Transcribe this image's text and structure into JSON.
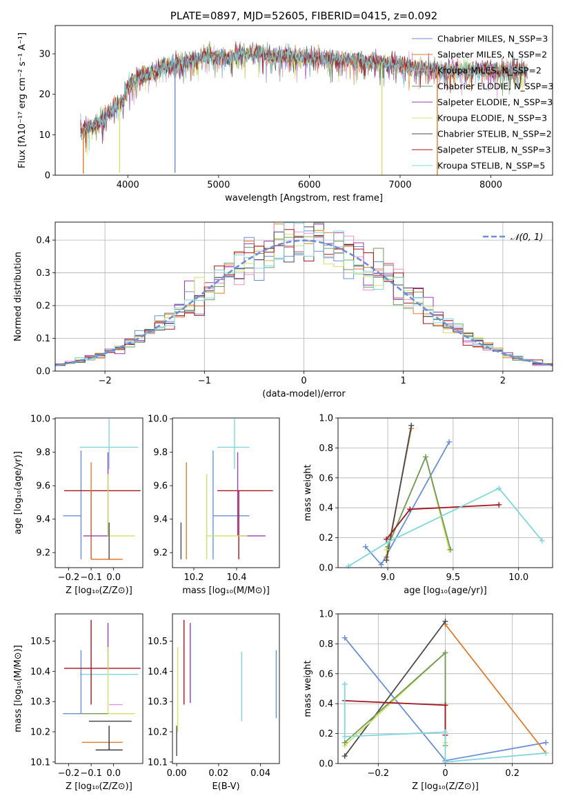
{
  "chart_data": [
    {
      "id": "spectrum",
      "type": "line",
      "title": "PLATE=0897, MJD=52605, FIBERID=0415, z=0.092",
      "xlabel": "wavelength [Angstrom, rest frame]",
      "ylabel": "Flux [fλ10⁻¹⁷ erg cm⁻² s⁻¹ A⁻¹]",
      "xlim": [
        3200,
        8680
      ],
      "ylim": [
        0,
        37
      ],
      "xticks": [
        4000,
        5000,
        6000,
        7000,
        8000
      ],
      "yticks": [
        0,
        10,
        20,
        30
      ],
      "legend_position": "top-right",
      "series": [
        {
          "name": "Chabrier MILES, N_SSP=3",
          "color": "#6a8fd8"
        },
        {
          "name": "Salpeter MILES, N_SSP=2",
          "color": "#e27a2c"
        },
        {
          "name": "Kroupa MILES, N_SSP=2",
          "color": "#e88fd0"
        },
        {
          "name": "Chabrier ELODIE, N_SSP=3",
          "color": "#6f9a5b"
        },
        {
          "name": "Salpeter ELODIE, N_SSP=3",
          "color": "#9a3cb0"
        },
        {
          "name": "Kroupa ELODIE, N_SSP=3",
          "color": "#d3e163"
        },
        {
          "name": "Chabrier STELIB, N_SSP=2",
          "color": "#4a4a4a"
        },
        {
          "name": "Salpeter STELIB, N_SSP=3",
          "color": "#a5141a"
        },
        {
          "name": "Kroupa STELIB, N_SSP=5",
          "color": "#7fd7dd"
        }
      ],
      "continuum": {
        "x": [
          3480,
          3560,
          3640,
          3700,
          3800,
          3880,
          3950,
          4000,
          4100,
          4200,
          4300,
          4400,
          4500,
          4600,
          4700,
          4800,
          4900,
          5000,
          5100,
          5200,
          5300,
          5400,
          5500,
          5600,
          5700,
          5800,
          5900,
          6000,
          6100,
          6200,
          6300,
          6400,
          6500,
          6600,
          6700,
          6800,
          6900,
          7000,
          7100,
          7200,
          7300,
          7400,
          7500,
          7600,
          7700,
          7800,
          7900,
          8000,
          8100,
          8200,
          8300,
          8400
        ],
        "y": [
          11,
          12,
          12.5,
          13.5,
          15.5,
          17,
          18.5,
          22,
          24,
          25,
          25.5,
          27,
          27.5,
          28,
          28,
          29,
          29.5,
          29.5,
          29,
          30,
          30,
          30,
          30,
          29.5,
          29.5,
          29.5,
          29,
          29,
          29,
          28.5,
          28.5,
          28.5,
          28.5,
          28,
          28,
          28,
          27.5,
          27.5,
          27,
          26.5,
          26.5,
          26,
          26,
          26,
          26,
          26,
          26,
          26,
          26,
          26,
          26,
          26
        ]
      },
      "absorption_features": [
        {
          "x": 3510,
          "depth": 11,
          "series": "Salpeter MILES, N_SSP=2"
        },
        {
          "x": 3910,
          "depth": 17,
          "series": "Kroupa ELODIE, N_SSP=3"
        },
        {
          "x": 4520,
          "depth": 27,
          "series": "Chabrier MILES, N_SSP=3"
        },
        {
          "x": 6800,
          "depth": 28,
          "series": "Kroupa ELODIE, N_SSP=3"
        },
        {
          "x": 7410,
          "depth": 26,
          "series": "Salpeter MILES, N_SSP=2"
        }
      ]
    },
    {
      "id": "residuals",
      "type": "histogram",
      "xlabel": "(data-model)/error",
      "ylabel": "Normed distribution",
      "xlim": [
        -2.5,
        2.5
      ],
      "ylim": [
        0,
        0.455
      ],
      "xticks": [
        -2,
        -1,
        0,
        1,
        2
      ],
      "yticks": [
        0.0,
        0.1,
        0.2,
        0.3,
        0.4
      ],
      "grid": true,
      "legend": "𝒩(0, 1)",
      "legend_position": "top-right",
      "gaussian": {
        "mean": 0,
        "sigma": 1,
        "color": "#6a8fd8"
      }
    },
    {
      "id": "age-vs-Z",
      "type": "errorbar",
      "xlabel": "Z [log₁₀(Z/Z⊙)]",
      "ylabel": "age  [log₁₀(age/yr)]",
      "xlim": [
        -0.26,
        0.13
      ],
      "ylim": [
        9.11,
        10.005
      ],
      "xticks": [
        -0.2,
        -0.1,
        0.0
      ],
      "yticks": [
        9.2,
        9.4,
        9.6,
        9.8,
        10.0
      ],
      "points": [
        {
          "color": "#7fd7dd",
          "x": -0.02,
          "xerr": [
            0.13,
            0.13
          ],
          "y": 9.83,
          "yerr": [
            0.13,
            0.17
          ]
        },
        {
          "color": "#6a8fd8",
          "x": -0.145,
          "xerr": [
            0.08,
            0.0
          ],
          "y": 9.42,
          "yerr": [
            0.26,
            0.39
          ]
        },
        {
          "color": "#a5141a",
          "x": -0.1,
          "xerr": [
            0.12,
            0.22
          ],
          "y": 9.57,
          "yerr": [
            0.41,
            0.0
          ]
        },
        {
          "color": "#e27a2c",
          "x": -0.1,
          "xerr": [
            0.0,
            0.14
          ],
          "y": 9.16,
          "yerr": [
            0.0,
            0.58
          ]
        },
        {
          "color": "#9a3cb0",
          "x": -0.025,
          "xerr": [
            0.11,
            0.0
          ],
          "y": 9.3,
          "yerr": [
            0.0,
            0.5
          ]
        },
        {
          "color": "#d3e163",
          "x": -0.025,
          "xerr": [
            0.0,
            0.12
          ],
          "y": 9.3,
          "yerr": [
            0.0,
            0.37
          ]
        },
        {
          "color": "#4a4a4a",
          "x": -0.02,
          "xerr": [
            0.0,
            0.0
          ],
          "y": 9.16,
          "yerr": [
            0.0,
            0.22
          ]
        }
      ]
    },
    {
      "id": "age-vs-mass",
      "type": "errorbar",
      "xlabel": "mass [log₁₀(M/M⊙)]",
      "ylabel": "",
      "xlim": [
        10.1,
        10.6
      ],
      "ylim": [
        9.11,
        10.005
      ],
      "xticks": [
        10.2,
        10.4
      ],
      "yticks": [
        9.2,
        9.4,
        9.6,
        9.8,
        10.0
      ],
      "points": [
        {
          "color": "#7fd7dd",
          "x": 10.39,
          "xerr": [
            0.08,
            0.07
          ],
          "y": 9.83,
          "yerr": [
            0.13,
            0.17
          ]
        },
        {
          "color": "#6a8fd8",
          "x": 10.29,
          "xerr": [
            0.0,
            0.17
          ],
          "y": 9.42,
          "yerr": [
            0.26,
            0.39
          ]
        },
        {
          "color": "#a5141a",
          "x": 10.41,
          "xerr": [
            0.1,
            0.16
          ],
          "y": 9.57,
          "yerr": [
            0.41,
            0.0
          ]
        },
        {
          "color": "#e27a2c",
          "x": 10.165,
          "xerr": [
            0.0,
            0.0
          ],
          "y": 9.3,
          "yerr": [
            0.14,
            0.44
          ]
        },
        {
          "color": "#9a3cb0",
          "x": 10.405,
          "xerr": [
            0.0,
            0.13
          ],
          "y": 9.3,
          "yerr": [
            0.0,
            0.5
          ]
        },
        {
          "color": "#d3e163",
          "x": 10.26,
          "xerr": [
            0.0,
            0.19
          ],
          "y": 9.3,
          "yerr": [
            0.14,
            0.37
          ]
        },
        {
          "color": "#4a4a4a",
          "x": 10.14,
          "xerr": [
            0.0,
            0.0
          ],
          "y": 9.16,
          "yerr": [
            0.0,
            0.22
          ]
        }
      ]
    },
    {
      "id": "weight-vs-age",
      "type": "line",
      "xlabel": "age  [log₁₀(age/yr)]",
      "ylabel": "mass weight",
      "xlim": [
        8.62,
        10.26
      ],
      "ylim": [
        0,
        1.0
      ],
      "xticks": [
        9.0,
        9.5,
        10.0
      ],
      "yticks": [
        0.0,
        0.2,
        0.4,
        0.6,
        0.8,
        1.0
      ],
      "grid": true,
      "series": [
        {
          "color": "#6a8fd8",
          "x": [
            8.83,
            8.95,
            9.47
          ],
          "y": [
            0.14,
            0.02,
            0.84
          ]
        },
        {
          "color": "#e27a2c",
          "x": [
            8.99,
            9.18
          ],
          "y": [
            0.07,
            0.93
          ]
        },
        {
          "color": "#4a4a4a",
          "x": [
            8.99,
            9.18
          ],
          "y": [
            0.05,
            0.95
          ]
        },
        {
          "color": "#d3e163",
          "x": [
            8.99,
            9.29,
            9.47
          ],
          "y": [
            0.12,
            0.74,
            0.12
          ]
        },
        {
          "color": "#6f9a5b",
          "x": [
            9.0,
            9.29,
            9.48
          ],
          "y": [
            0.14,
            0.74,
            0.12
          ]
        },
        {
          "color": "#a5141a",
          "x": [
            8.99,
            9.17,
            9.85
          ],
          "y": [
            0.19,
            0.39,
            0.42
          ]
        },
        {
          "color": "#7fd7dd",
          "x": [
            8.7,
            9.0,
            9.85,
            10.18
          ],
          "y": [
            0.01,
            0.17,
            0.53,
            0.18
          ]
        }
      ]
    },
    {
      "id": "mass-vs-Z",
      "type": "errorbar",
      "xlabel": "Z [log₁₀(Z/Z⊙)]",
      "ylabel": "mass [log₁₀(M/M⊙)]",
      "xlim": [
        -0.26,
        0.13
      ],
      "ylim": [
        10.095,
        10.59
      ],
      "xticks": [
        -0.2,
        -0.1,
        0.0
      ],
      "yticks": [
        10.1,
        10.2,
        10.3,
        10.4,
        10.5
      ],
      "points": [
        {
          "color": "#7fd7dd",
          "x": -0.02,
          "xerr": [
            0.13,
            0.13
          ],
          "y": 10.39,
          "yerr": [
            0.0,
            0.0
          ]
        },
        {
          "color": "#6a8fd8",
          "x": -0.145,
          "xerr": [
            0.08,
            0.0
          ],
          "y": 10.26,
          "yerr": [
            0.0,
            0.21
          ]
        },
        {
          "color": "#a5141a",
          "x": -0.1,
          "xerr": [
            0.12,
            0.22
          ],
          "y": 10.41,
          "yerr": [
            0.12,
            0.16
          ]
        },
        {
          "color": "#e27a2c",
          "x": -0.1,
          "xerr": [
            0.04,
            0.14
          ],
          "y": 10.165,
          "yerr": [
            0.0,
            0.0
          ]
        },
        {
          "color": "#e88fd0",
          "x": -0.02,
          "xerr": [
            0.0,
            0.06
          ],
          "y": 10.29,
          "yerr": [
            0.0,
            0.0
          ]
        },
        {
          "color": "#9a3cb0",
          "x": -0.025,
          "xerr": [
            0.0,
            0.0
          ],
          "y": 10.405,
          "yerr": [
            0.0,
            0.155
          ]
        },
        {
          "color": "#d3e163",
          "x": -0.025,
          "xerr": [
            0.0,
            0.12
          ],
          "y": 10.26,
          "yerr": [
            0.0,
            0.22
          ]
        },
        {
          "color": "#6f9a5b",
          "x": -0.145,
          "xerr": [
            0.0,
            0.12
          ],
          "y": 10.26,
          "yerr": [
            0.0,
            0.0
          ]
        },
        {
          "color": "#4a4a4a",
          "x": -0.02,
          "xerr": [
            0.09,
            0.1
          ],
          "y": 10.235,
          "yerr": [
            0.0,
            0.0
          ]
        },
        {
          "color": "#2f2f2f",
          "x": -0.02,
          "xerr": [
            0.06,
            0.06
          ],
          "y": 10.14,
          "yerr": [
            0.0,
            0.08
          ]
        }
      ]
    },
    {
      "id": "mass-vs-EBV",
      "type": "errorbar",
      "xlabel": "E(B-V)",
      "ylabel": "",
      "xlim": [
        -0.002,
        0.049
      ],
      "ylim": [
        10.095,
        10.59
      ],
      "xticks": [
        0.0,
        0.02,
        0.04
      ],
      "yticks": [
        10.1,
        10.2,
        10.3,
        10.4,
        10.5
      ],
      "points": [
        {
          "color": "#4a4a4a",
          "x": 0.0,
          "y": 10.14,
          "yerr": [
            0.02,
            0.08
          ]
        },
        {
          "color": "#d3e163",
          "x": 0.0005,
          "y": 10.26,
          "yerr": [
            0.06,
            0.22
          ]
        },
        {
          "color": "#a5141a",
          "x": 0.0035,
          "y": 10.41,
          "yerr": [
            0.12,
            0.16
          ]
        },
        {
          "color": "#9a3cb0",
          "x": 0.0065,
          "y": 10.405,
          "yerr": [
            0.11,
            0.155
          ]
        },
        {
          "color": "#7fd7dd",
          "x": 0.031,
          "y": 10.35,
          "yerr": [
            0.115,
            0.115
          ]
        },
        {
          "color": "#6a8fd8",
          "x": 0.0475,
          "y": 10.36,
          "yerr": [
            0.115,
            0.11
          ]
        }
      ]
    },
    {
      "id": "weight-vs-Z",
      "type": "line",
      "xlabel": "Z [log₁₀(Z/Z⊙)]",
      "ylabel": "mass weight",
      "xlim": [
        -0.32,
        0.32
      ],
      "ylim": [
        0,
        1.0
      ],
      "xticks": [
        -0.2,
        0.0,
        0.2
      ],
      "yticks": [
        0.0,
        0.2,
        0.4,
        0.6,
        0.8,
        1.0
      ],
      "grid": true,
      "series": [
        {
          "color": "#6a8fd8",
          "x": [
            -0.3,
            0.0,
            0.3
          ],
          "y": [
            0.84,
            0.02,
            0.14
          ]
        },
        {
          "color": "#e27a2c",
          "x": [
            0.0,
            0.3
          ],
          "y": [
            0.93,
            0.07
          ]
        },
        {
          "color": "#4a4a4a",
          "x": [
            -0.3,
            0.0
          ],
          "y": [
            0.05,
            0.95
          ]
        },
        {
          "color": "#d3e163",
          "x": [
            -0.3,
            0.0,
            0.0
          ],
          "y": [
            0.12,
            0.74,
            0.14
          ]
        },
        {
          "color": "#6f9a5b",
          "x": [
            -0.3,
            0.0,
            0.0
          ],
          "y": [
            0.14,
            0.74,
            0.12
          ]
        },
        {
          "color": "#a5141a",
          "x": [
            -0.3,
            0.0,
            0.0
          ],
          "y": [
            0.42,
            0.39,
            0.19
          ]
        },
        {
          "color": "#7fd7dd",
          "x": [
            -0.3,
            -0.3,
            0.0,
            0.0,
            0.3
          ],
          "y": [
            0.53,
            0.18,
            0.21,
            0.01,
            0.07
          ]
        }
      ]
    }
  ]
}
